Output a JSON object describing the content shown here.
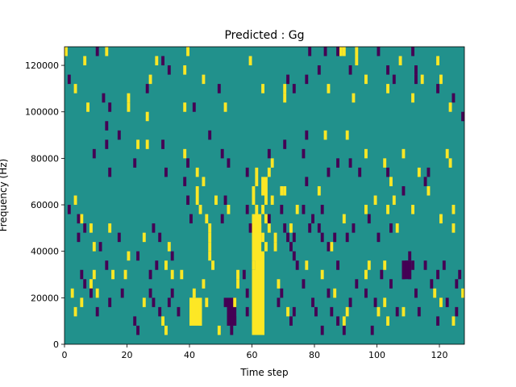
{
  "chart_data": {
    "type": "heatmap",
    "title": "Predicted : Gg",
    "xlabel": "Time step",
    "ylabel": "Frequency (Hz)",
    "xlim": [
      0,
      128
    ],
    "ylim": [
      0,
      128000
    ],
    "x_ticks": [
      0,
      20,
      40,
      60,
      80,
      100,
      120
    ],
    "y_ticks": [
      0,
      20000,
      40000,
      60000,
      80000,
      100000,
      120000
    ],
    "grid": false,
    "colormap": "viridis",
    "colors": {
      "background": "#21918c",
      "low": "#440154",
      "high": "#fde725"
    },
    "cell_height_hz": 4000,
    "high_cells": [
      [
        0,
        124000
      ],
      [
        6,
        120000
      ],
      [
        13,
        124000
      ],
      [
        29,
        120000
      ],
      [
        39,
        124000
      ],
      [
        59,
        120000
      ],
      [
        93,
        120000
      ],
      [
        93,
        124000
      ],
      [
        119,
        120000
      ],
      [
        27,
        112000
      ],
      [
        38,
        116000
      ],
      [
        44,
        112000
      ],
      [
        63,
        108000
      ],
      [
        70,
        108000
      ],
      [
        88,
        124000
      ],
      [
        89,
        124000
      ],
      [
        96,
        112000
      ],
      [
        107,
        120000
      ],
      [
        114,
        112000
      ],
      [
        120,
        112000
      ],
      [
        3,
        108000
      ],
      [
        7,
        100000
      ],
      [
        20,
        100000
      ],
      [
        20,
        104000
      ],
      [
        26,
        96000
      ],
      [
        38,
        100000
      ],
      [
        51,
        100000
      ],
      [
        70,
        104000
      ],
      [
        84,
        108000
      ],
      [
        92,
        104000
      ],
      [
        103,
        108000
      ],
      [
        111,
        104000
      ],
      [
        123,
        100000
      ],
      [
        23,
        84000
      ],
      [
        26,
        84000
      ],
      [
        38,
        80000
      ],
      [
        42,
        72000
      ],
      [
        44,
        68000
      ],
      [
        65,
        72000
      ],
      [
        66,
        76000
      ],
      [
        69,
        64000
      ],
      [
        70,
        64000
      ],
      [
        83,
        88000
      ],
      [
        90,
        88000
      ],
      [
        96,
        80000
      ],
      [
        102,
        76000
      ],
      [
        104,
        68000
      ],
      [
        108,
        80000
      ],
      [
        113,
        72000
      ],
      [
        116,
        64000
      ],
      [
        122,
        80000
      ],
      [
        123,
        76000
      ],
      [
        3,
        60000
      ],
      [
        5,
        52000
      ],
      [
        8,
        48000
      ],
      [
        9,
        40000
      ],
      [
        14,
        48000
      ],
      [
        20,
        36000
      ],
      [
        25,
        44000
      ],
      [
        32,
        32000
      ],
      [
        33,
        40000
      ],
      [
        34,
        28000
      ],
      [
        42,
        60000
      ],
      [
        42,
        64000
      ],
      [
        43,
        56000
      ],
      [
        45,
        52000
      ],
      [
        46,
        36000
      ],
      [
        46,
        40000
      ],
      [
        46,
        44000
      ],
      [
        46,
        48000
      ],
      [
        47,
        32000
      ],
      [
        48,
        60000
      ],
      [
        52,
        56000
      ],
      [
        55,
        28000
      ],
      [
        60,
        64000
      ],
      [
        60,
        60000
      ],
      [
        61,
        56000
      ],
      [
        61,
        52000
      ],
      [
        62,
        48000
      ],
      [
        63,
        44000
      ],
      [
        64,
        40000
      ],
      [
        60,
        36000
      ],
      [
        60,
        32000
      ],
      [
        61,
        28000
      ],
      [
        61,
        24000
      ],
      [
        62,
        20000
      ],
      [
        63,
        56000
      ],
      [
        64,
        52000
      ],
      [
        65,
        48000
      ],
      [
        64,
        60000
      ],
      [
        66,
        60000
      ],
      [
        67,
        44000
      ],
      [
        67,
        40000
      ],
      [
        72,
        48000
      ],
      [
        74,
        56000
      ],
      [
        81,
        64000
      ],
      [
        85,
        40000
      ],
      [
        89,
        52000
      ],
      [
        96,
        56000
      ],
      [
        97,
        32000
      ],
      [
        99,
        60000
      ],
      [
        102,
        32000
      ],
      [
        103,
        56000
      ],
      [
        105,
        60000
      ],
      [
        106,
        48000
      ],
      [
        111,
        56000
      ],
      [
        120,
        52000
      ],
      [
        124,
        48000
      ],
      [
        124,
        56000
      ],
      [
        2,
        20000
      ],
      [
        3,
        12000
      ],
      [
        5,
        16000
      ],
      [
        8,
        24000
      ],
      [
        9,
        28000
      ],
      [
        10,
        20000
      ],
      [
        15,
        28000
      ],
      [
        19,
        28000
      ],
      [
        25,
        16000
      ],
      [
        31,
        8000
      ],
      [
        32,
        4000
      ],
      [
        37,
        28000
      ],
      [
        40,
        16000
      ],
      [
        41,
        20000
      ],
      [
        42,
        12000
      ],
      [
        43,
        8000
      ],
      [
        44,
        24000
      ],
      [
        45,
        16000
      ],
      [
        49,
        4000
      ],
      [
        54,
        16000
      ],
      [
        55,
        24000
      ],
      [
        60,
        16000
      ],
      [
        61,
        12000
      ],
      [
        62,
        8000
      ],
      [
        63,
        4000
      ],
      [
        60,
        8000
      ],
      [
        62,
        16000
      ],
      [
        68,
        24000
      ],
      [
        71,
        12000
      ],
      [
        77,
        32000
      ],
      [
        82,
        28000
      ],
      [
        86,
        20000
      ],
      [
        89,
        8000
      ],
      [
        90,
        12000
      ],
      [
        96,
        28000
      ],
      [
        100,
        12000
      ],
      [
        102,
        16000
      ],
      [
        103,
        8000
      ],
      [
        108,
        12000
      ],
      [
        118,
        20000
      ],
      [
        120,
        16000
      ],
      [
        124,
        8000
      ],
      [
        127,
        20000
      ]
    ],
    "low_cells": [
      [
        10,
        124000
      ],
      [
        33,
        116000
      ],
      [
        31,
        120000
      ],
      [
        78,
        124000
      ],
      [
        81,
        116000
      ],
      [
        83,
        124000
      ],
      [
        87,
        124000
      ],
      [
        91,
        116000
      ],
      [
        100,
        124000
      ],
      [
        103,
        116000
      ],
      [
        111,
        124000
      ],
      [
        112,
        116000
      ],
      [
        1,
        112000
      ],
      [
        12,
        104000
      ],
      [
        14,
        100000
      ],
      [
        26,
        108000
      ],
      [
        41,
        100000
      ],
      [
        49,
        108000
      ],
      [
        71,
        112000
      ],
      [
        73,
        108000
      ],
      [
        77,
        112000
      ],
      [
        105,
        112000
      ],
      [
        112,
        112000
      ],
      [
        119,
        108000
      ],
      [
        124,
        104000
      ],
      [
        127,
        96000
      ],
      [
        13,
        92000
      ],
      [
        13,
        84000
      ],
      [
        17,
        88000
      ],
      [
        9,
        80000
      ],
      [
        14,
        72000
      ],
      [
        22,
        76000
      ],
      [
        31,
        84000
      ],
      [
        32,
        72000
      ],
      [
        38,
        68000
      ],
      [
        39,
        76000
      ],
      [
        46,
        88000
      ],
      [
        50,
        80000
      ],
      [
        52,
        76000
      ],
      [
        58,
        72000
      ],
      [
        65,
        80000
      ],
      [
        70,
        84000
      ],
      [
        77,
        88000
      ],
      [
        76,
        80000
      ],
      [
        77,
        68000
      ],
      [
        84,
        72000
      ],
      [
        87,
        76000
      ],
      [
        91,
        76000
      ],
      [
        94,
        72000
      ],
      [
        103,
        72000
      ],
      [
        108,
        64000
      ],
      [
        115,
        68000
      ],
      [
        116,
        72000
      ],
      [
        1,
        56000
      ],
      [
        4,
        52000
      ],
      [
        4,
        44000
      ],
      [
        6,
        48000
      ],
      [
        11,
        40000
      ],
      [
        13,
        32000
      ],
      [
        17,
        44000
      ],
      [
        23,
        36000
      ],
      [
        27,
        28000
      ],
      [
        28,
        48000
      ],
      [
        29,
        32000
      ],
      [
        30,
        44000
      ],
      [
        34,
        36000
      ],
      [
        39,
        60000
      ],
      [
        40,
        52000
      ],
      [
        50,
        52000
      ],
      [
        51,
        60000
      ],
      [
        58,
        56000
      ],
      [
        59,
        48000
      ],
      [
        65,
        52000
      ],
      [
        69,
        56000
      ],
      [
        70,
        48000
      ],
      [
        71,
        44000
      ],
      [
        72,
        40000
      ],
      [
        73,
        36000
      ],
      [
        74,
        32000
      ],
      [
        73,
        44000
      ],
      [
        76,
        56000
      ],
      [
        78,
        48000
      ],
      [
        79,
        52000
      ],
      [
        81,
        48000
      ],
      [
        82,
        44000
      ],
      [
        82,
        56000
      ],
      [
        84,
        40000
      ],
      [
        86,
        44000
      ],
      [
        87,
        32000
      ],
      [
        90,
        44000
      ],
      [
        92,
        48000
      ],
      [
        97,
        52000
      ],
      [
        100,
        44000
      ],
      [
        104,
        48000
      ],
      [
        109,
        32000
      ],
      [
        110,
        36000
      ],
      [
        111,
        32000
      ],
      [
        110,
        28000
      ],
      [
        108,
        28000
      ],
      [
        115,
        32000
      ],
      [
        119,
        28000
      ],
      [
        121,
        32000
      ],
      [
        125,
        24000
      ],
      [
        126,
        28000
      ],
      [
        5,
        28000
      ],
      [
        6,
        24000
      ],
      [
        8,
        20000
      ],
      [
        10,
        12000
      ],
      [
        14,
        16000
      ],
      [
        18,
        20000
      ],
      [
        22,
        8000
      ],
      [
        23,
        4000
      ],
      [
        27,
        20000
      ],
      [
        28,
        16000
      ],
      [
        30,
        12000
      ],
      [
        33,
        16000
      ],
      [
        34,
        20000
      ],
      [
        36,
        12000
      ],
      [
        51,
        16000
      ],
      [
        52,
        8000
      ],
      [
        53,
        12000
      ],
      [
        54,
        8000
      ],
      [
        53,
        4000
      ],
      [
        57,
        28000
      ],
      [
        58,
        20000
      ],
      [
        58,
        12000
      ],
      [
        68,
        16000
      ],
      [
        69,
        20000
      ],
      [
        72,
        8000
      ],
      [
        73,
        12000
      ],
      [
        76,
        24000
      ],
      [
        79,
        16000
      ],
      [
        80,
        12000
      ],
      [
        82,
        4000
      ],
      [
        84,
        20000
      ],
      [
        85,
        12000
      ],
      [
        87,
        8000
      ],
      [
        89,
        4000
      ],
      [
        91,
        16000
      ],
      [
        93,
        24000
      ],
      [
        96,
        20000
      ],
      [
        98,
        4000
      ],
      [
        99,
        16000
      ],
      [
        101,
        28000
      ],
      [
        104,
        24000
      ],
      [
        106,
        12000
      ],
      [
        112,
        20000
      ],
      [
        113,
        12000
      ],
      [
        117,
        24000
      ],
      [
        119,
        8000
      ],
      [
        122,
        16000
      ],
      [
        125,
        12000
      ]
    ],
    "high_blocks": [
      [
        60,
        4000,
        4,
        28000
      ],
      [
        61,
        24000,
        3,
        16000
      ],
      [
        40,
        8000,
        4,
        12000
      ],
      [
        63,
        64000,
        2,
        8000
      ],
      [
        60,
        36000,
        3,
        20000
      ],
      [
        61,
        68000,
        1,
        8000
      ]
    ],
    "low_blocks": [
      [
        52,
        8000,
        3,
        12000
      ],
      [
        108,
        28000,
        3,
        8000
      ]
    ]
  }
}
